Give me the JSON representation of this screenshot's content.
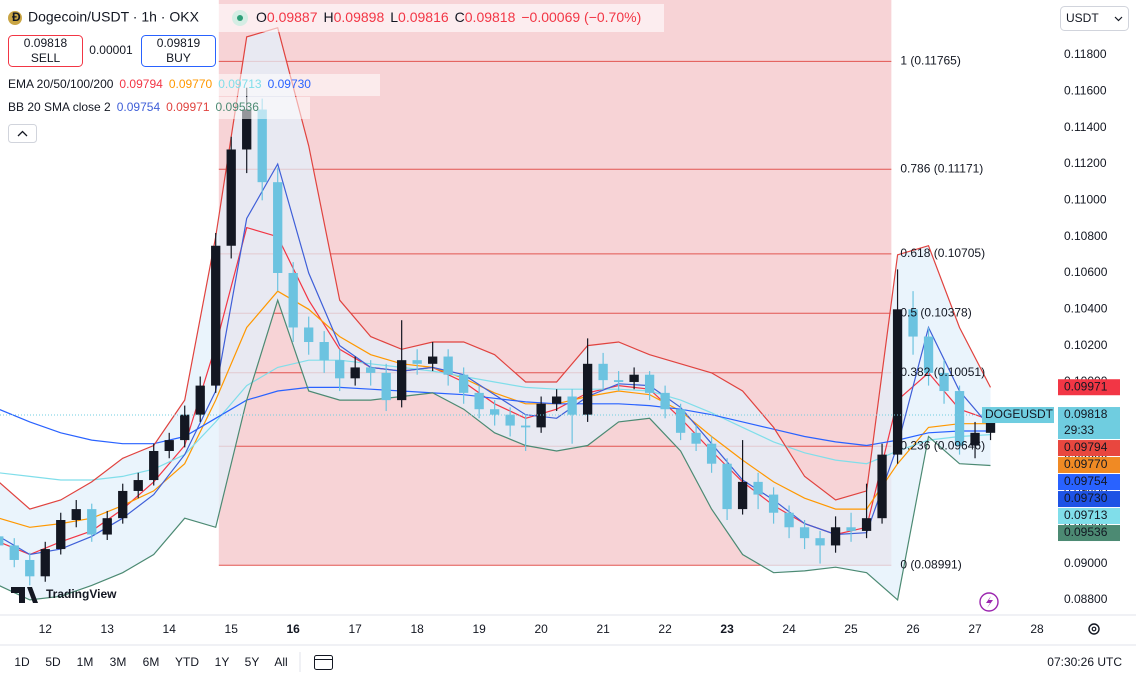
{
  "header": {
    "symbol": "Dogecoin/USDT · 1h · OKX",
    "ohlc_labels": [
      "O",
      "H",
      "L",
      "C"
    ],
    "ohlc_values": [
      "0.09887",
      "0.09898",
      "0.09816",
      "0.09818"
    ],
    "change": "−0.00069 (−0.70%)"
  },
  "trade": {
    "sell_price": "0.09818",
    "sell": "SELL",
    "spread": "0.00001",
    "buy_price": "0.09819",
    "buy": "BUY"
  },
  "ema_legend": {
    "label": "EMA 20/50/100/200",
    "values": [
      "0.09794",
      "0.09770",
      "0.09713",
      "0.09730"
    ]
  },
  "bb_legend": {
    "label": "BB 20 SMA close 2",
    "values": [
      "0.09754",
      "0.09971",
      "0.09536"
    ]
  },
  "currency": "USDT",
  "brand": "TradingView",
  "timeframes": [
    "1D",
    "5D",
    "1M",
    "3M",
    "6M",
    "YTD",
    "1Y",
    "5Y",
    "All"
  ],
  "clock": "07:30:26 UTC",
  "chart_data": {
    "type": "candlestick",
    "up_color": "#131722",
    "down_color": "#6cc3e0",
    "x": [
      11.25,
      11.5,
      11.75,
      12,
      12.25,
      12.5,
      12.75,
      13,
      13.25,
      13.5,
      13.75,
      14,
      14.25,
      14.5,
      14.75,
      15,
      15.25,
      15.5,
      15.75,
      16,
      16.25,
      16.5,
      16.75,
      17,
      17.25,
      17.5,
      17.75,
      18,
      18.25,
      18.5,
      18.75,
      19,
      19.25,
      19.5,
      19.75,
      20,
      20.25,
      20.5,
      20.75,
      21,
      21.25,
      21.5,
      21.75,
      22,
      22.25,
      22.5,
      22.75,
      23,
      23.25,
      23.5,
      23.75,
      24,
      24.25,
      24.5,
      24.75,
      25,
      25.25,
      25.5,
      25.75,
      26,
      26.25,
      26.5,
      26.75,
      27,
      27.25
    ],
    "open": [
      0.0915,
      0.091,
      0.0902,
      0.0893,
      0.0908,
      0.0924,
      0.093,
      0.0916,
      0.0925,
      0.094,
      0.0946,
      0.0962,
      0.0968,
      0.0982,
      0.0998,
      0.1075,
      0.1128,
      0.115,
      0.111,
      0.106,
      0.103,
      0.1022,
      0.1012,
      0.1002,
      0.1008,
      0.1005,
      0.099,
      0.1012,
      0.101,
      0.1014,
      0.1004,
      0.0994,
      0.0985,
      0.0982,
      0.0976,
      0.0975,
      0.0988,
      0.0992,
      0.0982,
      0.101,
      0.1001,
      0.1,
      0.1004,
      0.0994,
      0.0985,
      0.0972,
      0.0966,
      0.0955,
      0.093,
      0.0945,
      0.0938,
      0.0928,
      0.092,
      0.0914,
      0.091,
      0.092,
      0.0918,
      0.0925,
      0.096,
      0.104,
      0.1025,
      0.1005,
      0.0995,
      0.0965,
      0.0972
    ],
    "high": [
      0.0919,
      0.0914,
      0.0906,
      0.0912,
      0.0928,
      0.0935,
      0.0933,
      0.0929,
      0.0944,
      0.095,
      0.0966,
      0.0972,
      0.0987,
      0.1003,
      0.1082,
      0.1135,
      0.1162,
      0.1156,
      0.1118,
      0.1066,
      0.1036,
      0.1028,
      0.1018,
      0.1014,
      0.1012,
      0.101,
      0.1034,
      0.1018,
      0.1022,
      0.1018,
      0.1008,
      0.0998,
      0.099,
      0.0986,
      0.0982,
      0.0992,
      0.0996,
      0.0996,
      0.1024,
      0.1016,
      0.1006,
      0.1008,
      0.1006,
      0.0998,
      0.0988,
      0.0976,
      0.097,
      0.0958,
      0.0968,
      0.095,
      0.0942,
      0.0932,
      0.0924,
      0.0918,
      0.0926,
      0.0928,
      0.0944,
      0.0966,
      0.1062,
      0.105,
      0.103,
      0.1012,
      0.0998,
      0.0978,
      0.0985
    ],
    "low": [
      0.0906,
      0.0898,
      0.0888,
      0.089,
      0.0905,
      0.092,
      0.0912,
      0.0913,
      0.0922,
      0.0936,
      0.0943,
      0.0958,
      0.0964,
      0.0978,
      0.0994,
      0.1068,
      0.1115,
      0.11,
      0.105,
      0.1022,
      0.1015,
      0.1005,
      0.0995,
      0.0998,
      0.0998,
      0.0984,
      0.0986,
      0.1004,
      0.1006,
      0.0998,
      0.0988,
      0.098,
      0.0976,
      0.097,
      0.0962,
      0.0972,
      0.0984,
      0.0966,
      0.0978,
      0.0996,
      0.0995,
      0.0996,
      0.099,
      0.098,
      0.0968,
      0.0962,
      0.095,
      0.0924,
      0.0927,
      0.093,
      0.0922,
      0.0914,
      0.0908,
      0.09,
      0.0906,
      0.0912,
      0.0914,
      0.0922,
      0.0955,
      0.1015,
      0.0998,
      0.0988,
      0.096,
      0.0958,
      0.0968
    ],
    "close": [
      0.091,
      0.0902,
      0.0893,
      0.0908,
      0.0924,
      0.093,
      0.0916,
      0.0925,
      0.094,
      0.0946,
      0.0962,
      0.0968,
      0.0982,
      0.0998,
      0.1075,
      0.1128,
      0.115,
      0.111,
      0.106,
      0.103,
      0.1022,
      0.1012,
      0.1002,
      0.1008,
      0.1005,
      0.099,
      0.1012,
      0.101,
      0.1014,
      0.1004,
      0.0994,
      0.0985,
      0.0982,
      0.0976,
      0.0975,
      0.0988,
      0.0992,
      0.0982,
      0.101,
      0.1001,
      0.1,
      0.1004,
      0.0994,
      0.0985,
      0.0972,
      0.0966,
      0.0955,
      0.093,
      0.0945,
      0.0938,
      0.0928,
      0.092,
      0.0914,
      0.091,
      0.092,
      0.0918,
      0.0925,
      0.096,
      0.104,
      0.1025,
      0.1005,
      0.0995,
      0.0965,
      0.0972,
      0.09818
    ],
    "line_x": [
      11.25,
      11.75,
      12.25,
      12.75,
      13.25,
      13.75,
      14.25,
      14.75,
      15.25,
      15.75,
      16.25,
      16.75,
      17.25,
      17.75,
      18.25,
      18.75,
      19.25,
      19.75,
      20.25,
      20.75,
      21.25,
      21.75,
      22.25,
      22.75,
      23.25,
      23.75,
      24.25,
      24.75,
      25.25,
      25.75,
      26.25,
      26.75,
      27.25
    ],
    "lines": [
      {
        "color": "#f23645",
        "values": [
          0.0912,
          0.0905,
          0.0912,
          0.0918,
          0.093,
          0.0945,
          0.0965,
          0.102,
          0.1085,
          0.108,
          0.1045,
          0.1018,
          0.1008,
          0.1006,
          0.1008,
          0.1,
          0.0988,
          0.098,
          0.0985,
          0.0994,
          0.0998,
          0.0996,
          0.098,
          0.0962,
          0.0945,
          0.0932,
          0.0922,
          0.0916,
          0.092,
          0.099,
          0.1005,
          0.0985,
          0.0979
        ]
      },
      {
        "color": "#ff9800",
        "values": [
          0.0925,
          0.092,
          0.0922,
          0.0925,
          0.0932,
          0.094,
          0.0955,
          0.099,
          0.103,
          0.105,
          0.104,
          0.1025,
          0.1015,
          0.101,
          0.1008,
          0.1002,
          0.0994,
          0.0988,
          0.0988,
          0.0992,
          0.0995,
          0.0993,
          0.0984,
          0.097,
          0.0957,
          0.0945,
          0.0936,
          0.093,
          0.093,
          0.0955,
          0.0975,
          0.0977,
          0.0977
        ]
      },
      {
        "color": "#80deea",
        "values": [
          0.095,
          0.0948,
          0.0946,
          0.0946,
          0.0948,
          0.0952,
          0.096,
          0.0978,
          0.0998,
          0.1008,
          0.1012,
          0.1012,
          0.101,
          0.1008,
          0.1006,
          0.1003,
          0.1,
          0.0997,
          0.0996,
          0.0996,
          0.0996,
          0.0995,
          0.099,
          0.0983,
          0.0975,
          0.0967,
          0.0961,
          0.0957,
          0.0955,
          0.0962,
          0.0968,
          0.097,
          0.0971
        ]
      },
      {
        "color": "#2962ff",
        "values": [
          0.0985,
          0.0978,
          0.0972,
          0.0968,
          0.0966,
          0.0966,
          0.097,
          0.098,
          0.099,
          0.0995,
          0.0997,
          0.0997,
          0.0996,
          0.0995,
          0.0994,
          0.0993,
          0.0991,
          0.0989,
          0.0988,
          0.0988,
          0.0988,
          0.0987,
          0.0985,
          0.0982,
          0.0978,
          0.0974,
          0.097,
          0.0967,
          0.0965,
          0.0968,
          0.0972,
          0.0973,
          0.0973
        ]
      },
      {
        "color": "#3f5fd8",
        "values": [
          0.0915,
          0.0905,
          0.0908,
          0.0915,
          0.0925,
          0.0938,
          0.096,
          0.0995,
          0.109,
          0.112,
          0.106,
          0.102,
          0.1008,
          0.1006,
          0.1008,
          0.1004,
          0.0993,
          0.0982,
          0.098,
          0.0992,
          0.0999,
          0.0998,
          0.0986,
          0.0966,
          0.0946,
          0.0935,
          0.0922,
          0.0916,
          0.0917,
          0.0965,
          0.103,
          0.0995,
          0.0975
        ]
      },
      {
        "color": "#e0433f",
        "values": [
          0.0945,
          0.093,
          0.0935,
          0.0945,
          0.0958,
          0.0965,
          0.099,
          0.108,
          0.119,
          0.1195,
          0.113,
          0.1045,
          0.1025,
          0.1018,
          0.1022,
          0.1022,
          0.1015,
          0.1,
          0.1,
          0.102,
          0.1022,
          0.1015,
          0.101,
          0.1005,
          0.0995,
          0.0975,
          0.0948,
          0.0935,
          0.094,
          0.107,
          0.1075,
          0.103,
          0.0997
        ]
      },
      {
        "color": "#4c8a73",
        "values": [
          0.0888,
          0.088,
          0.0882,
          0.0888,
          0.0895,
          0.0905,
          0.0925,
          0.092,
          0.099,
          0.1045,
          0.0995,
          0.099,
          0.099,
          0.0992,
          0.0994,
          0.0985,
          0.0972,
          0.0965,
          0.0962,
          0.0965,
          0.0978,
          0.098,
          0.0962,
          0.093,
          0.0905,
          0.0895,
          0.0896,
          0.0898,
          0.0895,
          0.088,
          0.097,
          0.0955,
          0.0954
        ]
      }
    ],
    "band_fill": "#e3f0fb",
    "fib": {
      "color": "#e25550",
      "fill": "#f7d3d6",
      "x_range": [
        14.8,
        25.65
      ],
      "levels": [
        0.11765,
        0.11171,
        0.10705,
        0.10378,
        0.10051,
        0.09646,
        0.08991
      ],
      "labels": [
        "1 (0.11765)",
        "0.786 (0.11171)",
        "0.618 (0.10705)",
        "0.5 (0.10378)",
        "0.382 (0.10051)",
        "0.236 (0.09646)",
        "0 (0.08991)"
      ]
    },
    "last_tag": {
      "name": "DOGEUSDT",
      "value": 0.09818,
      "label": "0.09818",
      "countdown": "29:33",
      "color": "#6fcde0"
    },
    "price_tags": [
      {
        "value": 0.09971,
        "label": "0.09971",
        "color": "#f23645"
      },
      {
        "value": 0.09794,
        "label": "0.09794",
        "color": "#e8473f"
      },
      {
        "value": 0.0977,
        "label": "0.09770",
        "color": "#f08a24"
      },
      {
        "value": 0.09754,
        "label": "0.09754",
        "color": "#2962ff"
      },
      {
        "value": 0.0973,
        "label": "0.09730",
        "color": "#1e53e5"
      },
      {
        "value": 0.09713,
        "label": "0.09713",
        "color": "#80deea"
      },
      {
        "value": 0.09536,
        "label": "0.09536",
        "color": "#4c8a73"
      }
    ],
    "xlim": [
      11.27,
      28.29
    ],
    "ylim": [
      0.08717,
      0.12103
    ],
    "xticks": [
      12,
      13,
      14,
      15,
      16,
      17,
      18,
      19,
      20,
      21,
      22,
      23,
      24,
      25,
      26,
      27,
      28
    ],
    "xticks_bold": [
      16,
      23
    ],
    "yticks": [
      {
        "value": 0.088,
        "label": "0.08800"
      },
      {
        "value": 0.09,
        "label": "0.09000"
      },
      {
        "value": 0.092,
        "label": "0.09200"
      },
      {
        "value": 0.094,
        "label": "0.09400"
      },
      {
        "value": 0.096,
        "label": "0.09600"
      },
      {
        "value": 0.098,
        "label": "0.09800"
      },
      {
        "value": 0.1,
        "label": "0.10000"
      },
      {
        "value": 0.102,
        "label": "0.10200"
      },
      {
        "value": 0.104,
        "label": "0.10400"
      },
      {
        "value": 0.106,
        "label": "0.10600"
      },
      {
        "value": 0.108,
        "label": "0.10800"
      },
      {
        "value": 0.11,
        "label": "0.11000"
      },
      {
        "value": 0.112,
        "label": "0.11200"
      },
      {
        "value": 0.114,
        "label": "0.11400"
      },
      {
        "value": 0.116,
        "label": "0.11600"
      },
      {
        "value": 0.118,
        "label": "0.11800"
      }
    ],
    "grid": false
  }
}
